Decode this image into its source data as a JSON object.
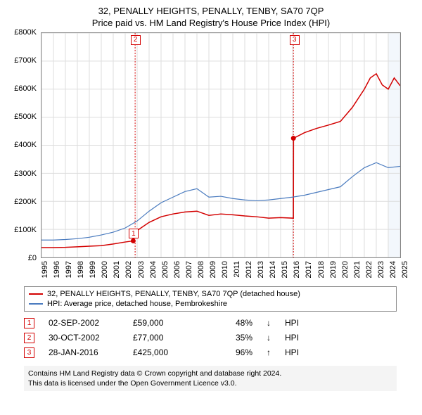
{
  "title_line1": "32, PENALLY HEIGHTS, PENALLY, TENBY, SA70 7QP",
  "title_line2": "Price paid vs. HM Land Registry's House Price Index (HPI)",
  "chart": {
    "type": "line",
    "background_color": "#ffffff",
    "grid_color": "#dddddd",
    "axis_color": "#888888",
    "forecast_fill": "#f3f7fc",
    "x_years": [
      1995,
      1996,
      1997,
      1998,
      1999,
      2000,
      2001,
      2002,
      2003,
      2004,
      2005,
      2006,
      2007,
      2008,
      2009,
      2010,
      2011,
      2012,
      2013,
      2014,
      2015,
      2016,
      2017,
      2018,
      2019,
      2020,
      2021,
      2022,
      2023,
      2024,
      2025
    ],
    "ylim": [
      0,
      800000
    ],
    "ytick_step": 100000,
    "ylabel_prefix": "£",
    "ylabel_suffix": "K",
    "forecast_start_year": 2024,
    "series": [
      {
        "name": "price_paid",
        "label": "32, PENALLY HEIGHTS, PENALLY, TENBY, SA70 7QP (detached house)",
        "color": "#d30000",
        "line_width": 1.5,
        "points": [
          [
            1995,
            35000
          ],
          [
            1996,
            35000
          ],
          [
            1997,
            36000
          ],
          [
            1998,
            38000
          ],
          [
            1999,
            40000
          ],
          [
            2000,
            42000
          ],
          [
            2001,
            48000
          ],
          [
            2002,
            55000
          ],
          [
            2002.67,
            59000
          ],
          [
            2002.83,
            77000
          ],
          [
            2003,
            96000
          ],
          [
            2004,
            125000
          ],
          [
            2005,
            145000
          ],
          [
            2006,
            155000
          ],
          [
            2007,
            162000
          ],
          [
            2008,
            165000
          ],
          [
            2009,
            150000
          ],
          [
            2010,
            155000
          ],
          [
            2011,
            152000
          ],
          [
            2012,
            148000
          ],
          [
            2013,
            145000
          ],
          [
            2014,
            140000
          ],
          [
            2015,
            142000
          ],
          [
            2016.07,
            140000
          ],
          [
            2016.08,
            425000
          ],
          [
            2017,
            445000
          ],
          [
            2018,
            460000
          ],
          [
            2019,
            472000
          ],
          [
            2020,
            485000
          ],
          [
            2021,
            535000
          ],
          [
            2022,
            600000
          ],
          [
            2022.5,
            640000
          ],
          [
            2023,
            655000
          ],
          [
            2023.5,
            615000
          ],
          [
            2024,
            600000
          ],
          [
            2024.5,
            640000
          ],
          [
            2025,
            612000
          ]
        ]
      },
      {
        "name": "hpi",
        "label": "HPI: Average price, detached house, Pembrokeshire",
        "color": "#4a7bbf",
        "line_width": 1.2,
        "points": [
          [
            1995,
            62000
          ],
          [
            1996,
            62000
          ],
          [
            1997,
            64000
          ],
          [
            1998,
            67000
          ],
          [
            1999,
            72000
          ],
          [
            2000,
            80000
          ],
          [
            2001,
            90000
          ],
          [
            2002,
            105000
          ],
          [
            2003,
            130000
          ],
          [
            2004,
            165000
          ],
          [
            2005,
            195000
          ],
          [
            2006,
            215000
          ],
          [
            2007,
            235000
          ],
          [
            2008,
            245000
          ],
          [
            2009,
            215000
          ],
          [
            2010,
            218000
          ],
          [
            2011,
            210000
          ],
          [
            2012,
            205000
          ],
          [
            2013,
            202000
          ],
          [
            2014,
            205000
          ],
          [
            2015,
            210000
          ],
          [
            2016,
            215000
          ],
          [
            2017,
            222000
          ],
          [
            2018,
            232000
          ],
          [
            2019,
            242000
          ],
          [
            2020,
            252000
          ],
          [
            2021,
            288000
          ],
          [
            2022,
            320000
          ],
          [
            2023,
            338000
          ],
          [
            2024,
            320000
          ],
          [
            2025,
            325000
          ]
        ]
      }
    ],
    "event_markers": [
      {
        "n": "1",
        "year": 2002.67,
        "value": 59000,
        "type": "point",
        "color": "#d30000"
      },
      {
        "n": "2",
        "year": 2002.83,
        "value": 77000,
        "type": "vline",
        "color": "#d30000"
      },
      {
        "n": "3",
        "year": 2016.07,
        "value": 425000,
        "type": "vline",
        "color": "#d30000"
      }
    ]
  },
  "legend": {
    "items": [
      {
        "color": "#d30000",
        "label": "32, PENALLY HEIGHTS, PENALLY, TENBY, SA70 7QP (detached house)"
      },
      {
        "color": "#4a7bbf",
        "label": "HPI: Average price, detached house, Pembrokeshire"
      }
    ]
  },
  "events": [
    {
      "n": "1",
      "date": "02-SEP-2002",
      "amount": "£59,000",
      "pct": "48%",
      "arrow": "↓",
      "suffix": "HPI",
      "color": "#d30000"
    },
    {
      "n": "2",
      "date": "30-OCT-2002",
      "amount": "£77,000",
      "pct": "35%",
      "arrow": "↓",
      "suffix": "HPI",
      "color": "#d30000"
    },
    {
      "n": "3",
      "date": "28-JAN-2016",
      "amount": "£425,000",
      "pct": "96%",
      "arrow": "↑",
      "suffix": "HPI",
      "color": "#d30000"
    }
  ],
  "disclaimer": {
    "line1": "Contains HM Land Registry data © Crown copyright and database right 2024.",
    "line2": "This data is licensed under the Open Government Licence v3.0."
  }
}
